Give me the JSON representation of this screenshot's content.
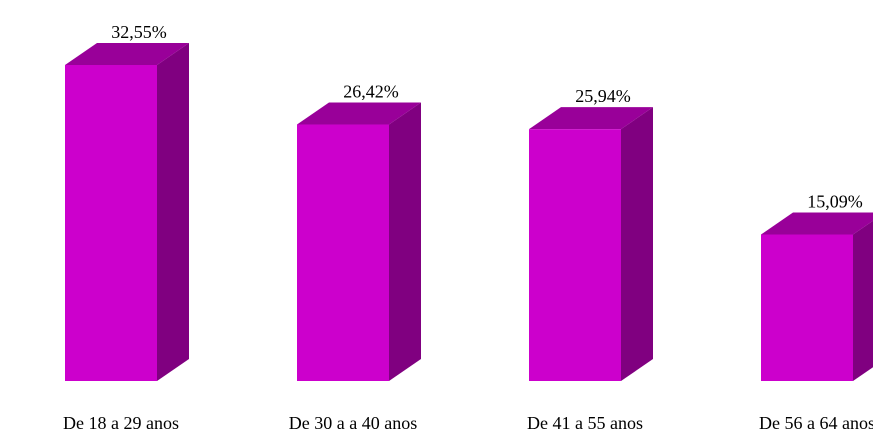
{
  "chart_data": {
    "type": "bar",
    "style": "3d",
    "categories": [
      "De 18 a 29 anos",
      "De 30 a a 40 anos",
      "De 41 a 55 anos",
      "De 56 a 64 anos"
    ],
    "values": [
      32.55,
      26.42,
      25.94,
      15.09
    ],
    "value_labels": [
      "32,55%",
      "26,42%",
      "25,94%",
      "15,09%"
    ],
    "title": "",
    "xlabel": "",
    "ylabel": "",
    "ylim": [
      0,
      32.55
    ],
    "grid": false,
    "legend": "none",
    "colors": {
      "front": "#cc00cc",
      "top": "#990099",
      "side": "#800080"
    }
  }
}
